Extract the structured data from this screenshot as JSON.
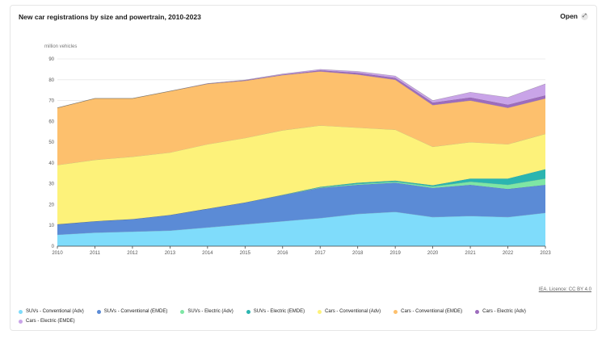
{
  "header": {
    "title": "New car registrations by size and powertrain, 2010-2023",
    "open_label": "Open"
  },
  "licence_text": "IEA. Licence: CC BY 4.0",
  "chart_data": {
    "type": "area",
    "stacked": true,
    "y_unit_label": "million vehicles",
    "x": [
      2010,
      2011,
      2012,
      2013,
      2014,
      2015,
      2016,
      2017,
      2018,
      2019,
      2020,
      2021,
      2022,
      2023
    ],
    "ylim": [
      0,
      90
    ],
    "yticks": [
      0,
      10,
      20,
      30,
      40,
      50,
      60,
      70,
      80,
      90
    ],
    "grid": true,
    "legend_position": "bottom",
    "series": [
      {
        "name": "SUVs - Conventional (Adv)",
        "color": "#7fdcfb",
        "values": [
          5.5,
          6.5,
          7.0,
          7.5,
          9.0,
          10.5,
          12.0,
          13.5,
          15.5,
          16.5,
          14.0,
          14.5,
          14.0,
          16.0
        ]
      },
      {
        "name": "SUVs - Conventional (EMDE)",
        "color": "#5b8bd6",
        "values": [
          5.0,
          5.5,
          6.0,
          7.5,
          9.0,
          10.5,
          12.5,
          14.5,
          14.0,
          14.0,
          14.0,
          15.0,
          13.5,
          13.5
        ]
      },
      {
        "name": "SUVs - Electric (Adv)",
        "color": "#7ee6a4",
        "values": [
          0,
          0,
          0,
          0,
          0,
          0,
          0.1,
          0.2,
          0.4,
          0.5,
          0.7,
          1.5,
          2.0,
          3.0
        ]
      },
      {
        "name": "SUVs - Electric (EMDE)",
        "color": "#2bb5b0",
        "values": [
          0,
          0,
          0,
          0,
          0,
          0,
          0.1,
          0.3,
          0.6,
          0.5,
          0.6,
          1.5,
          3.0,
          4.5
        ]
      },
      {
        "name": "Cars - Conventional (Adv)",
        "color": "#fdf27a",
        "values": [
          28.5,
          29.5,
          30.0,
          30.0,
          31.0,
          31.0,
          31.0,
          29.5,
          26.5,
          24.5,
          18.5,
          17.5,
          16.5,
          17.0
        ]
      },
      {
        "name": "Cars - Conventional (EMDE)",
        "color": "#fdc06d",
        "values": [
          27.5,
          29.5,
          28.0,
          29.5,
          29.0,
          27.5,
          26.5,
          26.0,
          25.5,
          24.0,
          20.0,
          20.0,
          17.5,
          17.0
        ]
      },
      {
        "name": "Cars - Electric (Adv)",
        "color": "#9d6cbd",
        "values": [
          0,
          0,
          0,
          0,
          0.1,
          0.2,
          0.3,
          0.5,
          0.8,
          0.9,
          1.2,
          1.5,
          1.5,
          1.5
        ]
      },
      {
        "name": "Cars - Electric (EMDE)",
        "color": "#c9a4e8",
        "values": [
          0,
          0,
          0,
          0,
          0.1,
          0.2,
          0.3,
          0.5,
          0.7,
          0.9,
          1.0,
          2.5,
          3.5,
          5.5
        ]
      }
    ]
  }
}
